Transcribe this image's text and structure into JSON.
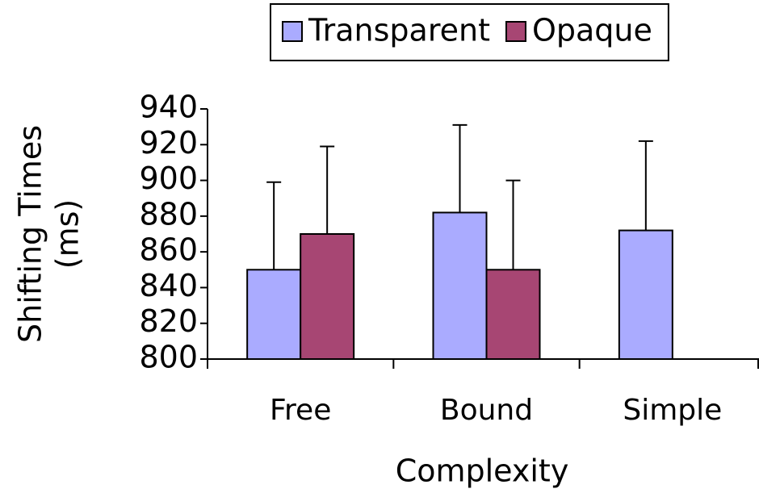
{
  "chart_data": {
    "type": "bar",
    "categories": [
      "Free",
      "Bound",
      "Simple"
    ],
    "series": [
      {
        "name": "Transparent",
        "color": "#aaabff",
        "values": [
          850,
          882,
          872
        ],
        "errors": [
          49,
          49,
          50
        ]
      },
      {
        "name": "Opaque",
        "color": "#a74673",
        "values": [
          870,
          850,
          null
        ],
        "errors": [
          49,
          50,
          null
        ]
      }
    ],
    "ylim": [
      800,
      940
    ],
    "yticks": [
      800,
      820,
      840,
      860,
      880,
      900,
      920,
      940
    ],
    "ylabel": [
      "Shifting  Times",
      "(ms)"
    ],
    "xlabel": "Complexity",
    "legend": "top",
    "grid": false
  }
}
